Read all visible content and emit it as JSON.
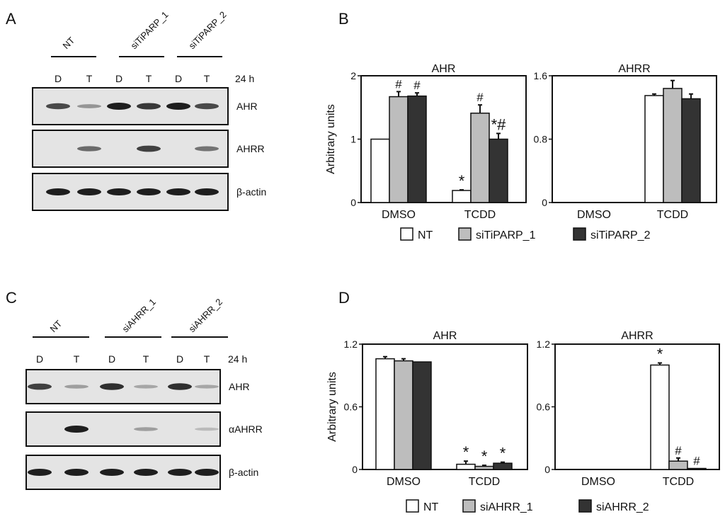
{
  "colors": {
    "nt": "#ffffff",
    "si1": "#bdbdbd",
    "si2": "#333333",
    "stroke": "#111111"
  },
  "panels": {
    "A": {
      "letter": "A",
      "group_labels": [
        "NT",
        "siTiPARP_1",
        "siTiPARP_2"
      ],
      "lanes": [
        "D",
        "T",
        "D",
        "T",
        "D",
        "T"
      ],
      "time": "24 h",
      "blots": [
        {
          "label": "AHR",
          "bands": [
            0.75,
            0.3,
            1.0,
            0.85,
            1.0,
            0.75
          ]
        },
        {
          "label": "AHRR",
          "bands": [
            0,
            0.55,
            0,
            0.8,
            0,
            0.5
          ]
        },
        {
          "label": "β-actin",
          "bands": [
            1,
            1,
            1,
            1,
            1,
            1
          ]
        }
      ]
    },
    "C": {
      "letter": "C",
      "group_labels": [
        "NT",
        "siAHRR_1",
        "siAHRR_2"
      ],
      "lanes": [
        "D",
        "T",
        "D",
        "T",
        "D",
        "T"
      ],
      "time": "24 h",
      "blots": [
        {
          "label": "AHR",
          "bands": [
            0.8,
            0.25,
            0.9,
            0.2,
            0.9,
            0.2
          ]
        },
        {
          "label": "αAHRR",
          "bands": [
            0,
            1.0,
            0,
            0.25,
            0,
            0.08
          ]
        },
        {
          "label": "β-actin",
          "bands": [
            1,
            1,
            1,
            1,
            1,
            1
          ]
        }
      ]
    },
    "B": {
      "letter": "B",
      "legend": [
        "NT",
        "siTiPARP_1",
        "siTiPARP_2"
      ]
    },
    "D": {
      "letter": "D",
      "legend": [
        "NT",
        "siAHRR_1",
        "siAHRR_2"
      ]
    }
  },
  "chart_data": [
    {
      "type": "bar",
      "panel": "B",
      "title": "AHR",
      "ylabel": "Arbitrary units",
      "ylim": [
        0,
        2
      ],
      "yticks": [
        "0",
        "1",
        "2"
      ],
      "categories": [
        "DMSO",
        "TCDD"
      ],
      "series": [
        {
          "name": "NT",
          "values": [
            1.0,
            0.19
          ],
          "err": [
            0,
            0.01
          ],
          "annot": [
            "",
            "*"
          ]
        },
        {
          "name": "siTiPARP_1",
          "values": [
            1.67,
            1.41
          ],
          "err": [
            0.08,
            0.13
          ],
          "annot": [
            "#",
            "#"
          ]
        },
        {
          "name": "siTiPARP_2",
          "values": [
            1.68,
            1.0
          ],
          "err": [
            0.05,
            0.09
          ],
          "annot": [
            "#",
            "*#"
          ]
        }
      ]
    },
    {
      "type": "bar",
      "panel": "B",
      "title": "AHRR",
      "ylabel": "",
      "ylim": [
        0,
        1.6
      ],
      "yticks": [
        "0",
        "0.8",
        "1.6"
      ],
      "categories": [
        "DMSO",
        "TCDD"
      ],
      "series": [
        {
          "name": "NT",
          "values": [
            0,
            1.35
          ],
          "err": [
            0,
            0.02
          ],
          "annot": [
            "",
            ""
          ]
        },
        {
          "name": "siTiPARP_1",
          "values": [
            0,
            1.44
          ],
          "err": [
            0,
            0.1
          ],
          "annot": [
            "",
            ""
          ]
        },
        {
          "name": "siTiPARP_2",
          "values": [
            0,
            1.31
          ],
          "err": [
            0,
            0.06
          ],
          "annot": [
            "",
            ""
          ]
        }
      ]
    },
    {
      "type": "bar",
      "panel": "D",
      "title": "AHR",
      "ylabel": "Arbitrary units",
      "ylim": [
        0,
        1.2
      ],
      "yticks": [
        "0",
        "0.6",
        "1.2"
      ],
      "categories": [
        "DMSO",
        "TCDD"
      ],
      "series": [
        {
          "name": "NT",
          "values": [
            1.06,
            0.05
          ],
          "err": [
            0.02,
            0.03
          ],
          "annot": [
            "",
            "*"
          ]
        },
        {
          "name": "siAHRR_1",
          "values": [
            1.04,
            0.03
          ],
          "err": [
            0.02,
            0.01
          ],
          "annot": [
            "",
            "*"
          ]
        },
        {
          "name": "siAHRR_2",
          "values": [
            1.03,
            0.06
          ],
          "err": [
            0,
            0.01
          ],
          "annot": [
            "",
            "*"
          ]
        }
      ]
    },
    {
      "type": "bar",
      "panel": "D",
      "title": "AHRR",
      "ylabel": "",
      "ylim": [
        0,
        1.2
      ],
      "yticks": [
        "0",
        "0.6",
        "1.2"
      ],
      "categories": [
        "DMSO",
        "TCDD"
      ],
      "series": [
        {
          "name": "NT",
          "values": [
            0,
            1.0
          ],
          "err": [
            0,
            0.02
          ],
          "annot": [
            "",
            "*"
          ]
        },
        {
          "name": "siAHRR_1",
          "values": [
            0,
            0.08
          ],
          "err": [
            0,
            0.03
          ],
          "annot": [
            "",
            "#"
          ]
        },
        {
          "name": "siAHRR_2",
          "values": [
            0,
            0.01
          ],
          "err": [
            0,
            0
          ],
          "annot": [
            "",
            "#"
          ]
        }
      ]
    }
  ]
}
